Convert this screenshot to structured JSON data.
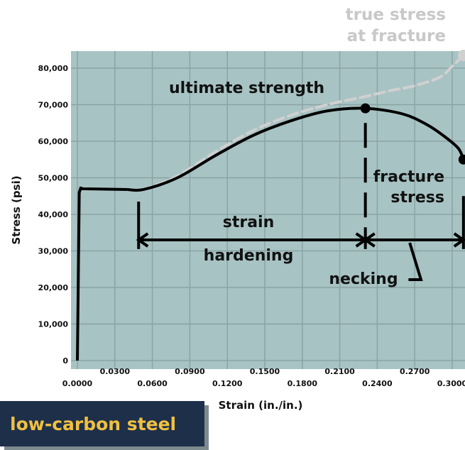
{
  "colors": {
    "plot_bg": "#a8c3c3",
    "grid": "#8aa4a6",
    "curve": "#000000",
    "true_curve": "#d0d0d0",
    "badge_bg": "#1e2f4a",
    "badge_text": "#f0c040"
  },
  "badge": {
    "label": "low-carbon steel"
  },
  "chart_data": {
    "type": "line",
    "title": "",
    "xlabel": "Strain (in./in.)",
    "ylabel": "Stress (psi)",
    "xlim": [
      0,
      0.3105
    ],
    "ylim": [
      0,
      85000
    ],
    "grid": true,
    "x_ticks_top": [
      "0.0300",
      "0.0900",
      "0.1500",
      "0.2100",
      "0.2700"
    ],
    "x_ticks_top_values": [
      0.03,
      0.09,
      0.15,
      0.21,
      0.27
    ],
    "x_ticks_bottom": [
      "0.0000",
      "0.0600",
      "0.1200",
      "0.1800",
      "0.2400",
      "0.3000"
    ],
    "x_ticks_bottom_values": [
      0.0,
      0.06,
      0.12,
      0.18,
      0.24,
      0.3
    ],
    "y_ticks": [
      "0",
      "10,000",
      "20,000",
      "30,000",
      "40,000",
      "50,000",
      "60,000",
      "70,000",
      "80,000"
    ],
    "y_tick_values": [
      0,
      10000,
      20000,
      30000,
      40000,
      50000,
      60000,
      70000,
      80000
    ],
    "series": [
      {
        "kind": "engineering",
        "x": [
          0.0,
          0.0015,
          0.003,
          0.003,
          0.04,
          0.053,
          0.08,
          0.11,
          0.14,
          0.17,
          0.2,
          0.23,
          0.26,
          0.28,
          0.295,
          0.305,
          0.309
        ],
        "y": [
          0,
          46000,
          47500,
          47000,
          46800,
          46800,
          50000,
          56000,
          61500,
          65500,
          68300,
          69000,
          67500,
          64500,
          61000,
          58000,
          55000
        ]
      },
      {
        "kind": "true",
        "x": [
          0.04,
          0.053,
          0.08,
          0.11,
          0.14,
          0.17,
          0.2,
          0.23,
          0.25,
          0.27,
          0.29,
          0.3,
          0.309
        ],
        "y": [
          46800,
          46900,
          50500,
          57000,
          62800,
          67000,
          70000,
          72200,
          73800,
          75200,
          77500,
          80500,
          83500
        ]
      }
    ],
    "points": [
      {
        "name": "ultimate strength",
        "x": 0.2305,
        "y": 69000
      },
      {
        "name": "fracture",
        "x": 0.309,
        "y": 55000
      },
      {
        "name": "true stress at fracture",
        "x": 0.309,
        "y": 83500
      }
    ],
    "annotations": {
      "true_fracture_line1": "true stress",
      "true_fracture_line2": "at fracture",
      "ultimate": "ultimate strength",
      "fracture_line1": "fracture",
      "fracture_line2": "stress",
      "strain": "strain",
      "hardening": "hardening",
      "necking": "necking"
    }
  }
}
